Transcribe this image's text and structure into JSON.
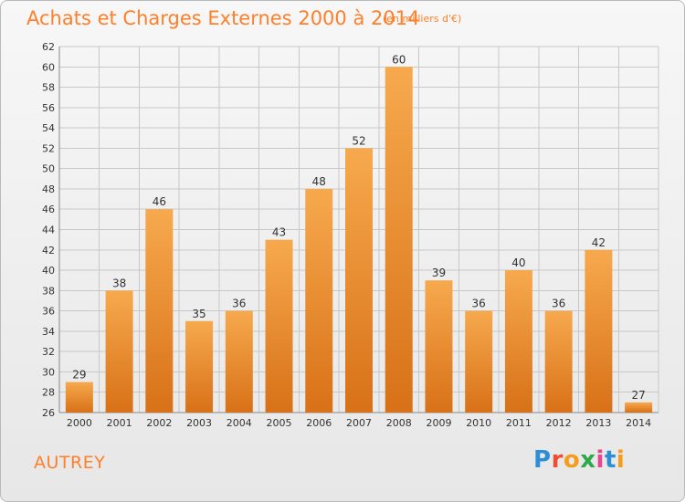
{
  "header": {
    "title": "Achats et Charges Externes 2000 à 2014",
    "subtitle": "(en milliers d'€)"
  },
  "footer": {
    "commune": "AUTREY",
    "logo_letters": [
      "P",
      "r",
      "o",
      "x",
      "i",
      "t",
      "i"
    ],
    "logo_colors": [
      "#2d8fd3",
      "#ef4c35",
      "#f59b1e",
      "#2da84a",
      "#e64690",
      "#2d8fd3",
      "#f59b1e"
    ]
  },
  "colors": {
    "bar_top": "#f7a94e",
    "bar_bottom": "#d87117",
    "grid": "#c8c8c8",
    "text": "#333333",
    "accent": "#ff7f2a"
  },
  "chart_data": {
    "type": "bar",
    "categories": [
      "2000",
      "2001",
      "2002",
      "2003",
      "2004",
      "2005",
      "2006",
      "2007",
      "2008",
      "2009",
      "2010",
      "2011",
      "2012",
      "2013",
      "2014"
    ],
    "values": [
      29,
      38,
      46,
      35,
      36,
      43,
      48,
      52,
      60,
      39,
      36,
      40,
      36,
      42,
      27
    ],
    "ylim": [
      26,
      62
    ],
    "yticks": [
      26,
      28,
      30,
      32,
      34,
      36,
      38,
      40,
      42,
      44,
      46,
      48,
      50,
      52,
      54,
      56,
      58,
      60,
      62
    ],
    "grid": true,
    "data_labels": true
  }
}
